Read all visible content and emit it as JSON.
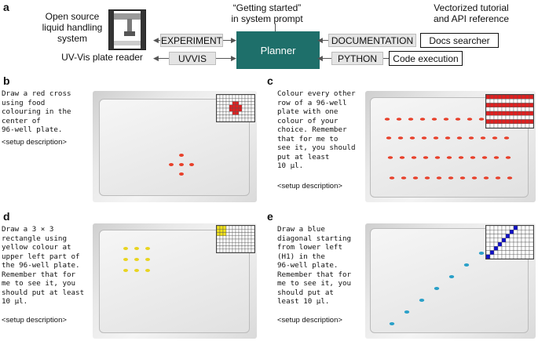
{
  "panels": {
    "a": {
      "letter": "a",
      "robot_label": "Open source\nliquid handling\nsystem",
      "uvvis_label": "UV-Vis plate reader",
      "getting_started": "“Getting started”\nin system prompt",
      "vectorized": "Vectorized tutorial\nand API reference",
      "experiment_box": "EXPERIMENT",
      "uvvis_box": "UVVIS",
      "planner": "Planner",
      "documentation_box": "DOCUMENTATION",
      "python_box": "PYTHON",
      "docs_searcher": "Docs searcher",
      "code_execution": "Code execution"
    },
    "b": {
      "letter": "b",
      "prompt": "Draw a red cross\nusing food\ncolouring in the\ncenter of\n96-well plate.",
      "setup": "<setup description>"
    },
    "c": {
      "letter": "c",
      "prompt": "Colour every other\nrow of a 96-well\nplate with one\ncolour of your\nchoice. Remember\nthat for me to\nsee it, you should\nput at least\n10 µl.",
      "setup": "<setup description>"
    },
    "d": {
      "letter": "d",
      "prompt": "Draw a 3 × 3\nrectangle using\nyellow colour at\nupper left part of\nthe 96-well plate.\nRemember that for\nme to see it, you\nshould put at least\n10 µl.",
      "setup": "<setup description>"
    },
    "e": {
      "letter": "e",
      "prompt": "Draw a blue\ndiagonal starting\nfrom lower left\n(H1) in the\n96-well plate.\nRemember that for\nme to see it, you\nshould put at\nleast 10 µl.",
      "setup": "<setup description>"
    }
  },
  "colors": {
    "planner": "#1e6f6a",
    "red": "#e02020",
    "yellow": "#f2e21a",
    "blue": "#1010c8",
    "red_photo": "#e8402a",
    "yellow_photo": "#e8d420",
    "blue_photo": "#2aa0c8"
  }
}
